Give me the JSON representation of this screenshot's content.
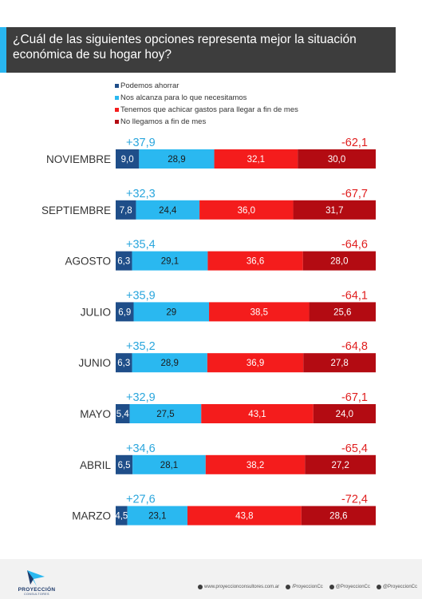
{
  "title": "¿Cuál de las siguientes opciones representa mejor la situación económica de su hogar hoy?",
  "colors": {
    "header_bg": "#3d3d3d",
    "accent": "#29b6f0",
    "ahorrar": "#1f4e89",
    "alcanza": "#2ab8f0",
    "achicar": "#f41c1c",
    "nollegamos": "#b30b12",
    "positive_text": "#2aa6dd",
    "negative_text": "#e01e1e"
  },
  "legend": [
    {
      "label": "Podemos ahorrar",
      "color": "#1f4e89"
    },
    {
      "label": "Nos alcanza para lo que necesitamos",
      "color": "#2ab8f0"
    },
    {
      "label": "Tenemos que achicar gastos para llegar a fin de mes",
      "color": "#f41c1c"
    },
    {
      "label": "No llegamos a fin de mes",
      "color": "#b30b12"
    }
  ],
  "chart_data": {
    "type": "bar",
    "stacked": true,
    "orientation": "horizontal",
    "categories": [
      "NOVIEMBRE",
      "SEPTIEMBRE",
      "AGOSTO",
      "JULIO",
      "JUNIO",
      "MAYO",
      "ABRIL",
      "MARZO"
    ],
    "series": [
      {
        "name": "Podemos ahorrar",
        "values": [
          9.0,
          7.8,
          6.3,
          6.9,
          6.3,
          5.4,
          6.5,
          4.5
        ],
        "labels": [
          "9,0",
          "7,8",
          "6,3",
          "6,9",
          "6,3",
          "5,4",
          "6,5",
          "4,5"
        ]
      },
      {
        "name": "Nos alcanza para lo que necesitamos",
        "values": [
          28.9,
          24.4,
          29.1,
          29,
          28.9,
          27.5,
          28.1,
          23.1
        ],
        "labels": [
          "28,9",
          "24,4",
          "29,1",
          "29",
          "28,9",
          "27,5",
          "28,1",
          "23,1"
        ]
      },
      {
        "name": "Tenemos que achicar gastos para llegar a fin de mes",
        "values": [
          32.1,
          36.0,
          36.6,
          38.5,
          36.9,
          43.1,
          38.2,
          43.8
        ],
        "labels": [
          "32,1",
          "36,0",
          "36,6",
          "38,5",
          "36,9",
          "43,1",
          "38,2",
          "43,8"
        ]
      },
      {
        "name": "No llegamos a fin de mes",
        "values": [
          30.0,
          31.7,
          28.0,
          25.6,
          27.8,
          24.0,
          27.2,
          28.6
        ],
        "labels": [
          "30,0",
          "31,7",
          "28,0",
          "25,6",
          "27,8",
          "24,0",
          "27,2",
          "28,6"
        ]
      }
    ],
    "positive_totals": [
      "+37,9",
      "+32,3",
      "+35,4",
      "+35,9",
      "+35,2",
      "+32,9",
      "+34,6",
      "+27,6"
    ],
    "negative_totals": [
      "-62,1",
      "-67,7",
      "-64,6",
      "-64,1",
      "-64,8",
      "-67,1",
      "-65,4",
      "-72,4"
    ]
  },
  "footer": {
    "brand": "PROYECCIÓN",
    "brand_sub": "CONSULTORES",
    "links": [
      {
        "icon": "web-icon",
        "text": "www.proyeccionconsultores.com.ar"
      },
      {
        "icon": "facebook-icon",
        "text": "/ProyeccionCc"
      },
      {
        "icon": "instagram-icon",
        "text": "@ProyeccionCc"
      },
      {
        "icon": "twitter-icon",
        "text": "@ProyeccionCc"
      }
    ]
  }
}
